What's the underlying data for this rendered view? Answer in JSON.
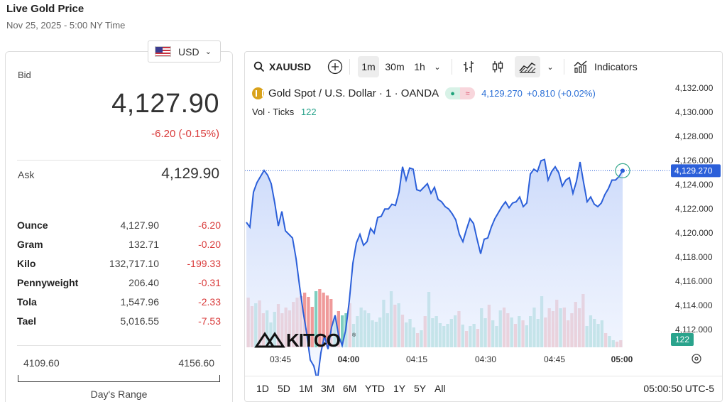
{
  "header": {
    "title": "Live Gold Price",
    "subtitle": "Nov 25, 2025 - 5:00 NY Time"
  },
  "currency": {
    "code": "USD",
    "flag_icon": "us-flag-icon"
  },
  "bid": {
    "label": "Bid",
    "price": "4,127.90",
    "change": "-6.20 (-0.15%)"
  },
  "ask": {
    "label": "Ask",
    "price": "4,129.90"
  },
  "units": [
    {
      "name": "Ounce",
      "value": "4,127.90",
      "change": "-6.20"
    },
    {
      "name": "Gram",
      "value": "132.71",
      "change": "-0.20"
    },
    {
      "name": "Kilo",
      "value": "132,717.10",
      "change": "-199.33"
    },
    {
      "name": "Pennyweight",
      "value": "206.40",
      "change": "-0.31"
    },
    {
      "name": "Tola",
      "value": "1,547.96",
      "change": "-2.33"
    },
    {
      "name": "Tael",
      "value": "5,016.55",
      "change": "-7.53"
    }
  ],
  "days_range": {
    "low": "4109.60",
    "high": "4156.60",
    "caption": "Day's Range"
  },
  "toolbar": {
    "symbol": "XAUUSD",
    "intervals": [
      "1m",
      "30m",
      "1h"
    ],
    "active_interval": "1m",
    "indicators_label": "Indicators"
  },
  "legend": {
    "instrument": "Gold Spot / U.S. Dollar · 1 · OANDA",
    "price": "4,129.270",
    "change": "+0.810 (+0.02%)",
    "vol_label": "Vol · Ticks",
    "vol_value": "122"
  },
  "watermark": "KITCO",
  "bottom": {
    "ranges": [
      "1D",
      "5D",
      "1M",
      "3M",
      "6M",
      "YTD",
      "1Y",
      "5Y",
      "All"
    ],
    "clock": "05:00:50 UTC-5"
  },
  "colors": {
    "line": "#2b5fd9",
    "fill": "#d7e3fb",
    "up": "#7fcfc0",
    "down": "#ef9a9a",
    "down_text": "#d93a3a"
  },
  "chart_data": {
    "type": "area",
    "y_ticks": [
      "4,132.000",
      "4,130.000",
      "4,128.000",
      "4,126.000",
      "4,124.000",
      "4,122.000",
      "4,120.000",
      "4,118.000",
      "4,116.000",
      "4,114.000",
      "4,112.000"
    ],
    "ylim": [
      4111,
      4132.5
    ],
    "x_ticks": [
      "03:45",
      "04:00",
      "04:15",
      "04:30",
      "04:45",
      "05:00"
    ],
    "current_price_label": "4,129.270",
    "current_price": 4129.27,
    "volume_label": "122",
    "series": [
      {
        "values": [
          4125,
          4124.6,
          4127.5,
          4128.3,
          4128.8,
          4129.3,
          4128.9,
          4128.2,
          4126.6,
          4124.7,
          4125.9,
          4124.3,
          4124.0,
          4123.7,
          4122.0,
          4119.7,
          4117.6,
          4115.8,
          4113.6,
          4113.1,
          4111.9,
          4114.2,
          4115.6,
          4114.5,
          4116.3,
          4117.3,
          4115.6,
          4114.8,
          4116.1,
          4118.5,
          4121.6,
          4123.3,
          4124.0,
          4123.1,
          4123.4,
          4124.5,
          4124.1,
          4125.4,
          4125.5,
          4126.1,
          4126.1,
          4126.5,
          4126.4,
          4127.5,
          4129.6,
          4128.5,
          4129.5,
          4129.4,
          4127.7,
          4127.6,
          4127.9,
          4128.2,
          4127.4,
          4127.9,
          4126.9,
          4126.7,
          4126.3,
          4126.1,
          4125.7,
          4125.2,
          4124.0,
          4123.4,
          4124.4,
          4125.3,
          4124.9,
          4123.6,
          4122.4,
          4123.6,
          4123.7,
          4124.6,
          4125.3,
          4125.8,
          4126.3,
          4126.7,
          4126.2,
          4126.6,
          4126.7,
          4127.1,
          4126.3,
          4126.6,
          4129.0,
          4129.4,
          4129.2,
          4130.1,
          4130.2,
          4128.5,
          4129.2,
          4129.6,
          4129.1,
          4128.0,
          4128.5,
          4128.7,
          4127.4,
          4128.4,
          4130.0,
          4128.3,
          4126.7,
          4127.1,
          4126.5,
          4126.3,
          4126.6,
          4127.3,
          4127.8,
          4128.5,
          4128.5,
          4128.8,
          4129.27
        ]
      }
    ],
    "volume": [
      {
        "v": 70,
        "up": false
      },
      {
        "v": 58,
        "up": false
      },
      {
        "v": 62,
        "up": true
      },
      {
        "v": 66,
        "up": false
      },
      {
        "v": 48,
        "up": false
      },
      {
        "v": 52,
        "up": true
      },
      {
        "v": 35,
        "up": true
      },
      {
        "v": 50,
        "up": true
      },
      {
        "v": 61,
        "up": false
      },
      {
        "v": 48,
        "up": false
      },
      {
        "v": 56,
        "up": false
      },
      {
        "v": 52,
        "up": false
      },
      {
        "v": 64,
        "up": false
      },
      {
        "v": 70,
        "up": false
      },
      {
        "v": 72,
        "up": false
      },
      {
        "v": 77,
        "up": false
      },
      {
        "v": 71,
        "up": false
      },
      {
        "v": 57,
        "up": false
      },
      {
        "v": 79,
        "up": true
      },
      {
        "v": 82,
        "up": false
      },
      {
        "v": 77,
        "up": false
      },
      {
        "v": 73,
        "up": false
      },
      {
        "v": 68,
        "up": false
      },
      {
        "v": 40,
        "up": true
      },
      {
        "v": 51,
        "up": false
      },
      {
        "v": 45,
        "up": true
      },
      {
        "v": 48,
        "up": true
      },
      {
        "v": 62,
        "up": false
      },
      {
        "v": 33,
        "up": true
      },
      {
        "v": 44,
        "up": true
      },
      {
        "v": 56,
        "up": true
      },
      {
        "v": 52,
        "up": true
      },
      {
        "v": 48,
        "up": true
      },
      {
        "v": 38,
        "up": true
      },
      {
        "v": 36,
        "up": true
      },
      {
        "v": 42,
        "up": true
      },
      {
        "v": 67,
        "up": true
      },
      {
        "v": 48,
        "up": true
      },
      {
        "v": 79,
        "up": true
      },
      {
        "v": 60,
        "up": false
      },
      {
        "v": 62,
        "up": true
      },
      {
        "v": 46,
        "up": false
      },
      {
        "v": 35,
        "up": true
      },
      {
        "v": 40,
        "up": true
      },
      {
        "v": 28,
        "up": true
      },
      {
        "v": 20,
        "up": false
      },
      {
        "v": 24,
        "up": true
      },
      {
        "v": 44,
        "up": false
      },
      {
        "v": 78,
        "up": true
      },
      {
        "v": 41,
        "up": true
      },
      {
        "v": 44,
        "up": true
      },
      {
        "v": 34,
        "up": true
      },
      {
        "v": 30,
        "up": true
      },
      {
        "v": 33,
        "up": true
      },
      {
        "v": 40,
        "up": true
      },
      {
        "v": 45,
        "up": true
      },
      {
        "v": 51,
        "up": false
      },
      {
        "v": 32,
        "up": true
      },
      {
        "v": 23,
        "up": false
      },
      {
        "v": 30,
        "up": true
      },
      {
        "v": 33,
        "up": true
      },
      {
        "v": 26,
        "up": false
      },
      {
        "v": 55,
        "up": true
      },
      {
        "v": 41,
        "up": true
      },
      {
        "v": 60,
        "up": false
      },
      {
        "v": 38,
        "up": true
      },
      {
        "v": 30,
        "up": true
      },
      {
        "v": 52,
        "up": true
      },
      {
        "v": 56,
        "up": false
      },
      {
        "v": 48,
        "up": false
      },
      {
        "v": 42,
        "up": true
      },
      {
        "v": 33,
        "up": false
      },
      {
        "v": 44,
        "up": true
      },
      {
        "v": 38,
        "up": false
      },
      {
        "v": 31,
        "up": true
      },
      {
        "v": 44,
        "up": true
      },
      {
        "v": 56,
        "up": true
      },
      {
        "v": 40,
        "up": true
      },
      {
        "v": 72,
        "up": true
      },
      {
        "v": 42,
        "up": false
      },
      {
        "v": 55,
        "up": false
      },
      {
        "v": 51,
        "up": false
      },
      {
        "v": 67,
        "up": false
      },
      {
        "v": 55,
        "up": true
      },
      {
        "v": 56,
        "up": false
      },
      {
        "v": 38,
        "up": false
      },
      {
        "v": 48,
        "up": false
      },
      {
        "v": 64,
        "up": false
      },
      {
        "v": 55,
        "up": false
      },
      {
        "v": 75,
        "up": false
      },
      {
        "v": 30,
        "up": true
      },
      {
        "v": 45,
        "up": true
      },
      {
        "v": 40,
        "up": true
      },
      {
        "v": 33,
        "up": true
      },
      {
        "v": 38,
        "up": true
      },
      {
        "v": 20,
        "up": false
      },
      {
        "v": 16,
        "up": true
      },
      {
        "v": 10,
        "up": true
      },
      {
        "v": 8,
        "up": false
      },
      {
        "v": 10,
        "up": false
      }
    ]
  }
}
